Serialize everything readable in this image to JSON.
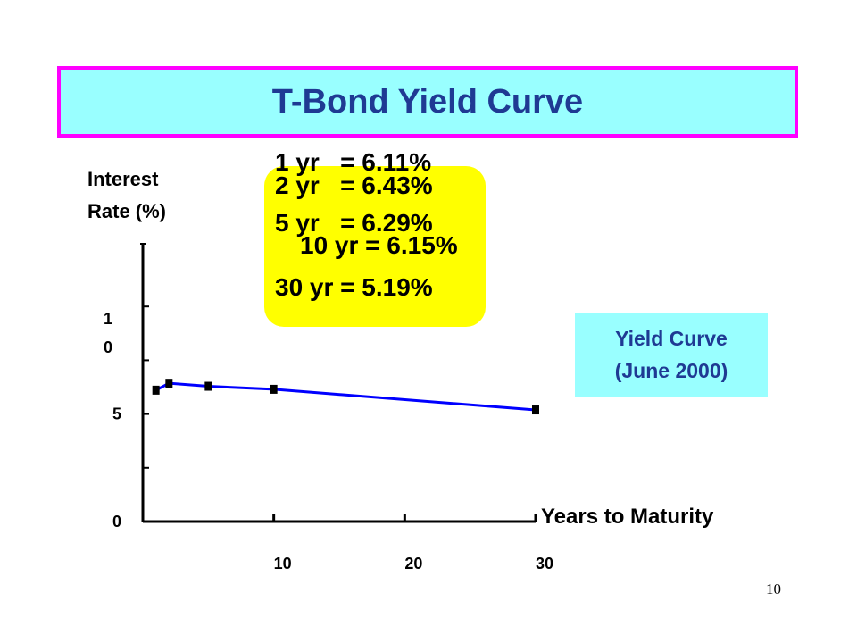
{
  "title": "T-Bond Yield Curve",
  "callout": {
    "lines": [
      "1 yr   = 6.11%",
      "2 yr   = 6.43%",
      "5 yr   = 6.29%",
      "10 yr = 6.15%",
      "30 yr = 5.19%"
    ]
  },
  "legend_box": {
    "line1": "Yield Curve",
    "line2": "(June  2000)"
  },
  "page_number": "10",
  "colors": {
    "title_bg": "#99ffff",
    "title_border": "#ff00ff",
    "title_text": "#1f3a93",
    "callout_bg": "#ffff00",
    "line": "#0000ff",
    "marker": "#000000"
  },
  "chart_data": {
    "type": "line",
    "title": "T-Bond Yield Curve",
    "xlabel": "Years to Maturity",
    "ylabel": "Interest\nRate (%)",
    "x_ticks": [
      "10",
      "20",
      "30"
    ],
    "y_ticks": [
      "0",
      "5",
      "1\n0"
    ],
    "xlim": [
      0,
      30
    ],
    "ylim": [
      0,
      12.5
    ],
    "grid": false,
    "series": [
      {
        "x": [
          1,
          2,
          5,
          10,
          30
        ],
        "values": [
          6.11,
          6.43,
          6.29,
          6.15,
          5.19
        ]
      }
    ]
  }
}
